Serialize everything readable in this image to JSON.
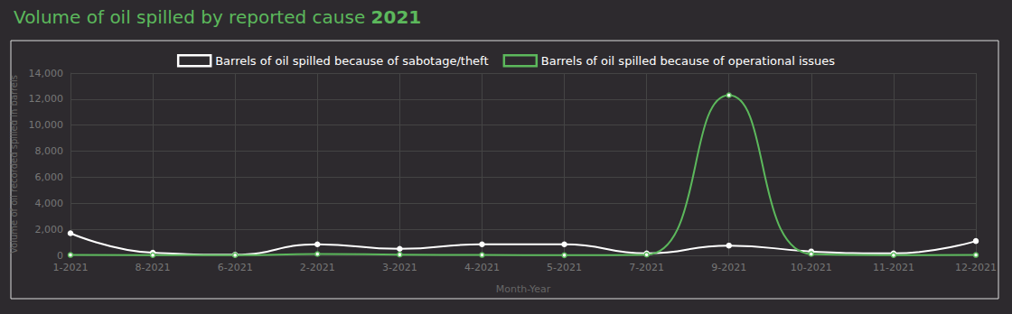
{
  "chart_data": {
    "type": "line",
    "title": "Volume of oil spilled by reported cause 2021",
    "x_label": "Month-Year",
    "y_label": "Volume of oil recorded spilled in barrels",
    "categories": [
      "1-2021",
      "8-2021",
      "6-2021",
      "2-2021",
      "3-2021",
      "4-2021",
      "5-2021",
      "7-2021",
      "9-2021",
      "10-2021",
      "11-2021",
      "12-2021"
    ],
    "series": [
      {
        "name": "Barrels of oil spilled because of sabotage/theft",
        "color": "#ffffff",
        "values": [
          1700,
          200,
          50,
          850,
          500,
          850,
          850,
          150,
          750,
          300,
          150,
          1100
        ]
      },
      {
        "name": "Barrels of oil spilled because of operational issues",
        "color": "#5cb85c",
        "values": [
          30,
          20,
          20,
          100,
          60,
          30,
          10,
          50,
          12300,
          100,
          20,
          30
        ]
      }
    ],
    "ylim": [
      0,
      14000
    ],
    "yticks": [
      0,
      2000,
      4000,
      6000,
      8000,
      10000,
      12000,
      14000
    ],
    "grid": true,
    "legend": "top",
    "marker": "circle",
    "line_style": "smooth"
  }
}
